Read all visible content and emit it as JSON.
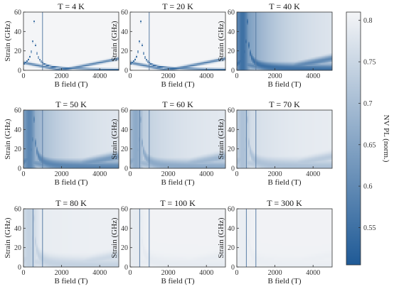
{
  "chart_data": {
    "type": "heatmap",
    "colorbar": {
      "label": "NV PL (norm.)",
      "range": [
        0.505,
        0.81
      ],
      "ticks": [
        "0.8",
        "0.75",
        "0.7",
        "0.65",
        "0.6",
        "0.55"
      ],
      "tick_values": [
        0.8,
        0.75,
        0.7,
        0.65,
        0.6,
        0.55
      ],
      "colors": {
        "low": "#1f5a96",
        "high": "#f4f5f7"
      }
    },
    "panels": [
      {
        "title": "T = 4 K",
        "temperature_K": 4,
        "pattern": "sharp",
        "background": 0.81,
        "line_strength": 0.9,
        "line_width": 0.9,
        "baseline_width": 1.4,
        "gradient": 0.0,
        "vlines": [
          1000
        ]
      },
      {
        "title": "T = 20 K",
        "temperature_K": 20,
        "pattern": "sharp",
        "background": 0.81,
        "line_strength": 0.9,
        "line_width": 1.0,
        "baseline_width": 1.5,
        "gradient": 0.0,
        "vlines": [
          1000
        ]
      },
      {
        "title": "T = 40 K",
        "temperature_K": 40,
        "pattern": "broad",
        "background": 0.79,
        "line_strength": 0.85,
        "line_width": 6.0,
        "baseline_width": 4.0,
        "gradient": 0.75,
        "vlines": [
          1000
        ]
      },
      {
        "title": "T = 50 K",
        "temperature_K": 50,
        "pattern": "broad",
        "background": 0.79,
        "line_strength": 0.7,
        "line_width": 7.0,
        "baseline_width": 5.0,
        "gradient": 0.55,
        "vlines": [
          1000
        ]
      },
      {
        "title": "T = 60 K",
        "temperature_K": 60,
        "pattern": "broad",
        "background": 0.79,
        "line_strength": 0.45,
        "line_width": 7.0,
        "baseline_width": 5.0,
        "gradient": 0.3,
        "vlines": [
          500,
          1000
        ]
      },
      {
        "title": "T = 70 K",
        "temperature_K": 70,
        "pattern": "faint",
        "background": 0.795,
        "line_strength": 0.3,
        "line_width": 8.0,
        "baseline_width": 5.0,
        "gradient": 0.18,
        "vlines": [
          500,
          1000
        ]
      },
      {
        "title": "T = 80 K",
        "temperature_K": 80,
        "pattern": "faint",
        "background": 0.8,
        "line_strength": 0.2,
        "line_width": 8.0,
        "baseline_width": 5.0,
        "gradient": 0.05,
        "vlines": [
          500,
          1000
        ]
      },
      {
        "title": "T = 100 K",
        "temperature_K": 100,
        "pattern": "minimal",
        "background": 0.805,
        "line_strength": 0.05,
        "line_width": 8.0,
        "baseline_width": 5.0,
        "gradient": 0.0,
        "vlines": [
          500,
          1000
        ]
      },
      {
        "title": "T = 300 K",
        "temperature_K": 300,
        "pattern": "minimal",
        "background": 0.805,
        "line_strength": 0.03,
        "line_width": 8.0,
        "baseline_width": 5.0,
        "gradient": 0.0,
        "vlines": [
          500,
          1000
        ]
      }
    ],
    "xlabel": "B field (T)",
    "ylabel": "Strain (GHz)",
    "xlim": [
      0,
      5000
    ],
    "ylim": [
      0,
      60
    ],
    "xticks": [
      0,
      2000,
      4000
    ],
    "yticks": [
      0,
      20,
      40,
      60
    ]
  }
}
